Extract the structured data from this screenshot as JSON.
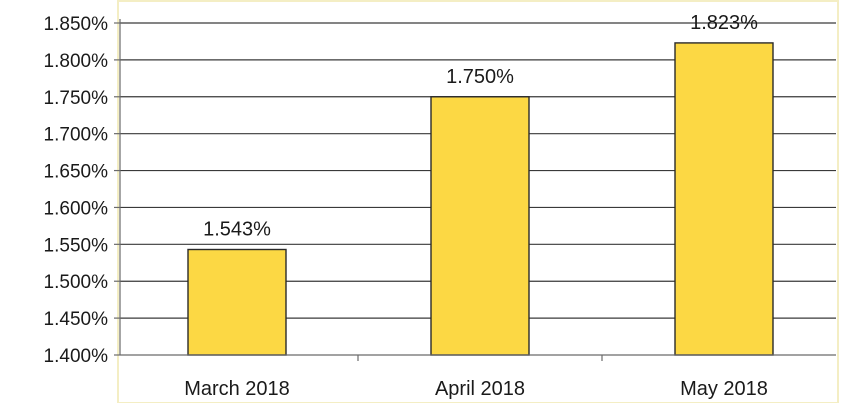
{
  "chart_data": {
    "type": "bar",
    "categories": [
      "March 2018",
      "April 2018",
      "May 2018"
    ],
    "values": [
      1.543,
      1.75,
      1.823
    ],
    "data_labels": [
      "1.543%",
      "1.750%",
      "1.823%"
    ],
    "title": "",
    "xlabel": "",
    "ylabel": "",
    "ylim": [
      1.4,
      1.85
    ],
    "y_ticks": [
      1.4,
      1.45,
      1.5,
      1.55,
      1.6,
      1.65,
      1.7,
      1.75,
      1.8,
      1.85
    ],
    "y_tick_labels": [
      "1.400%",
      "1.450%",
      "1.500%",
      "1.550%",
      "1.600%",
      "1.650%",
      "1.700%",
      "1.750%",
      "1.800%",
      "1.850%"
    ],
    "grid": true,
    "legend": "none",
    "colors": {
      "bar_fill": "#fcd844",
      "plot_background": "#ffffff",
      "plot_border": "#f4eec4"
    }
  }
}
